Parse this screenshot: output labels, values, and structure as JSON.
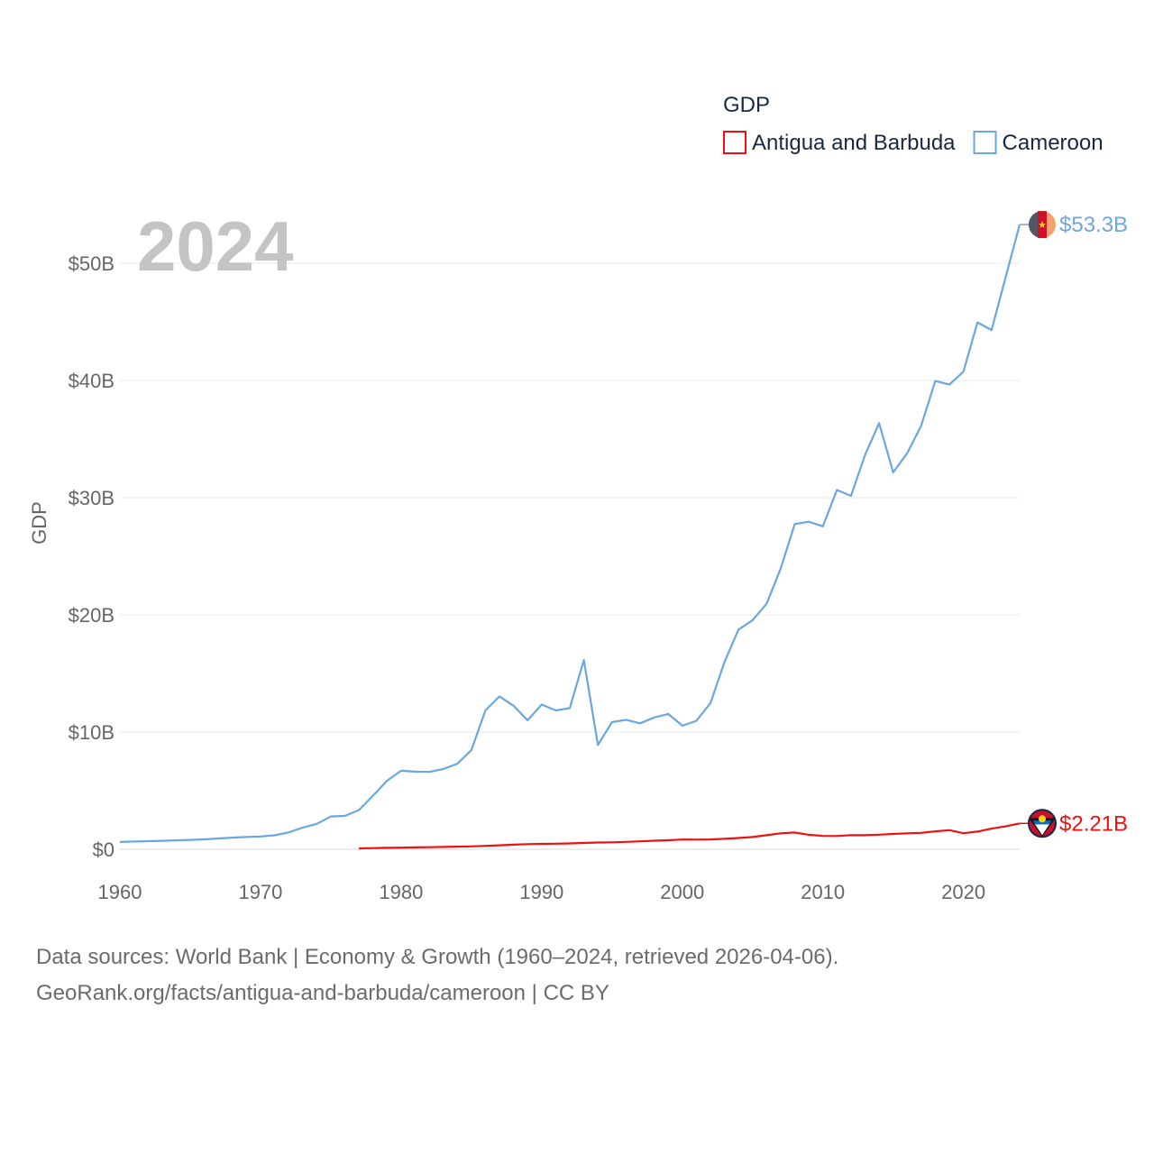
{
  "chart_data": {
    "type": "line",
    "ylabel": "GDP",
    "ylim": [
      0,
      55000000000
    ],
    "y_ticks": [
      {
        "value": 0,
        "label": "$0"
      },
      {
        "value": 10000000000,
        "label": "$10B"
      },
      {
        "value": 20000000000,
        "label": "$20B"
      },
      {
        "value": 30000000000,
        "label": "$30B"
      },
      {
        "value": 40000000000,
        "label": "$40B"
      },
      {
        "value": 50000000000,
        "label": "$50B"
      }
    ],
    "xlim": [
      1960,
      2024
    ],
    "x_ticks": [
      {
        "value": 1960,
        "label": "1960"
      },
      {
        "value": 1970,
        "label": "1970"
      },
      {
        "value": 1980,
        "label": "1980"
      },
      {
        "value": 1990,
        "label": "1990"
      },
      {
        "value": 2000,
        "label": "2000"
      },
      {
        "value": 2010,
        "label": "2010"
      },
      {
        "value": 2020,
        "label": "2020"
      }
    ],
    "year_label": "2024",
    "legend_title": "GDP",
    "series": [
      {
        "name": "Antigua and Barbuda",
        "color": "#ee1111",
        "end_label": "$2.21B",
        "flag": "antigua-and-barbuda-flag-icon",
        "x": [
          1977,
          1978,
          1979,
          1980,
          1981,
          1982,
          1983,
          1984,
          1985,
          1986,
          1987,
          1988,
          1989,
          1990,
          1991,
          1992,
          1993,
          1994,
          1995,
          1996,
          1997,
          1998,
          1999,
          2000,
          2001,
          2002,
          2003,
          2004,
          2005,
          2006,
          2007,
          2008,
          2009,
          2010,
          2011,
          2012,
          2013,
          2014,
          2015,
          2016,
          2017,
          2018,
          2019,
          2020,
          2021,
          2022,
          2023,
          2024
        ],
        "values": [
          0.08,
          0.1,
          0.12,
          0.14,
          0.16,
          0.18,
          0.2,
          0.22,
          0.25,
          0.29,
          0.34,
          0.39,
          0.44,
          0.46,
          0.48,
          0.5,
          0.54,
          0.58,
          0.59,
          0.63,
          0.68,
          0.73,
          0.77,
          0.83,
          0.82,
          0.84,
          0.89,
          0.96,
          1.05,
          1.2,
          1.36,
          1.43,
          1.24,
          1.14,
          1.13,
          1.21,
          1.2,
          1.25,
          1.31,
          1.36,
          1.4,
          1.53,
          1.63,
          1.37,
          1.51,
          1.76,
          1.95,
          2.21
        ]
      },
      {
        "name": "Cameroon",
        "color": "#6aa7e0",
        "end_label": "$53.3B",
        "flag": "cameroon-flag-icon",
        "x": [
          1960,
          1961,
          1962,
          1963,
          1964,
          1965,
          1966,
          1967,
          1968,
          1969,
          1970,
          1971,
          1972,
          1973,
          1974,
          1975,
          1976,
          1977,
          1978,
          1979,
          1980,
          1981,
          1982,
          1983,
          1984,
          1985,
          1986,
          1987,
          1988,
          1989,
          1990,
          1991,
          1992,
          1993,
          1994,
          1995,
          1996,
          1997,
          1998,
          1999,
          2000,
          2001,
          2002,
          2003,
          2004,
          2005,
          2006,
          2007,
          2008,
          2009,
          2010,
          2011,
          2012,
          2013,
          2014,
          2015,
          2016,
          2017,
          2018,
          2019,
          2020,
          2021,
          2022,
          2023,
          2024
        ],
        "values": [
          0.62,
          0.66,
          0.69,
          0.72,
          0.76,
          0.8,
          0.85,
          0.92,
          0.99,
          1.05,
          1.09,
          1.19,
          1.44,
          1.85,
          2.17,
          2.8,
          2.85,
          3.35,
          4.57,
          5.85,
          6.7,
          6.62,
          6.6,
          6.85,
          7.3,
          8.45,
          11.85,
          13.05,
          12.25,
          11.0,
          12.35,
          11.85,
          12.05,
          16.15,
          8.9,
          10.85,
          11.05,
          10.75,
          11.25,
          11.55,
          10.55,
          10.95,
          12.45,
          15.95,
          18.75,
          19.55,
          20.95,
          23.95,
          27.75,
          27.95,
          27.55,
          30.65,
          30.15,
          33.65,
          36.35,
          32.15,
          33.8,
          36.15,
          39.95,
          39.65,
          40.75,
          44.95,
          44.3,
          48.8,
          53.3
        ]
      }
    ]
  },
  "footer": {
    "line1": "Data sources: World Bank | Economy & Growth (1960–2024, retrieved 2026-04-06).",
    "line2": "GeoRank.org/facts/antigua-and-barbuda/cameroon | CC BY"
  }
}
